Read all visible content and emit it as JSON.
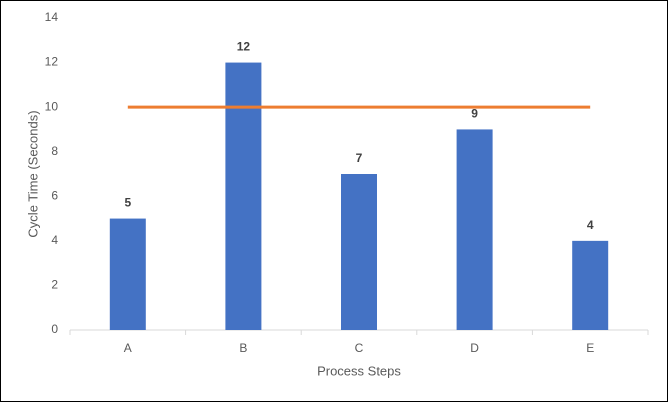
{
  "chart_data": {
    "type": "bar",
    "categories": [
      "A",
      "B",
      "C",
      "D",
      "E"
    ],
    "series": [
      {
        "type": "bar",
        "color": "#4472c4",
        "values": [
          5,
          12,
          7,
          9,
          4
        ]
      },
      {
        "type": "line",
        "color": "#ed7d31",
        "values": [
          10,
          10,
          10,
          10,
          10
        ]
      }
    ],
    "data_labels": true,
    "x_label": "Process Steps",
    "y_label": "Cycle Time (Seconds)",
    "ylim": [
      0,
      14
    ],
    "yticks": [
      0,
      2,
      4,
      6,
      8,
      10,
      12,
      14
    ],
    "grid": false
  }
}
